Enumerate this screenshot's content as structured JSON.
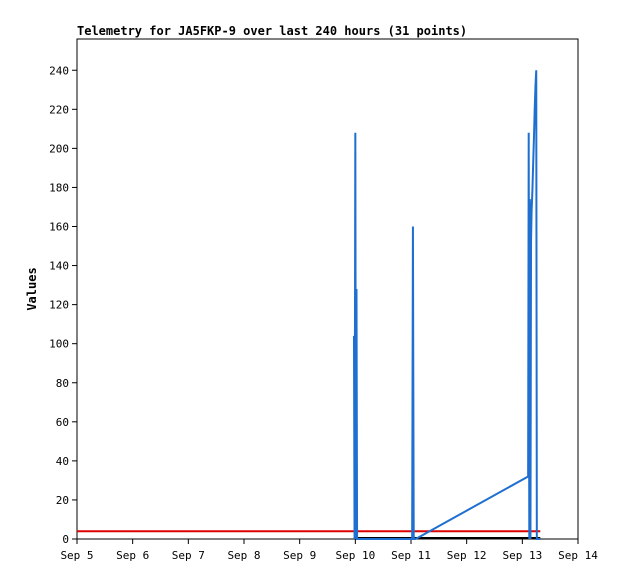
{
  "chart_data": {
    "type": "line",
    "title": "Telemetry for JA5FKP-9 over last 240 hours (31 points)",
    "xlabel": "",
    "ylabel": "Values",
    "xlim": [
      "Sep 5",
      "Sep 14"
    ],
    "ylim": [
      0,
      256
    ],
    "x_ticks": [
      "Sep 5",
      "Sep 6",
      "Sep 7",
      "Sep 8",
      "Sep 9",
      "Sep 10",
      "Sep 11",
      "Sep 12",
      "Sep 13",
      "Sep 14"
    ],
    "y_ticks": [
      0,
      20,
      40,
      60,
      80,
      100,
      120,
      140,
      160,
      180,
      200,
      220,
      240
    ],
    "grid": false,
    "legend": "none",
    "colors": {
      "series": "#1f6fd0",
      "reference": "#dd0000",
      "baseline": "#000000"
    },
    "series": [
      {
        "values_x": [
          "Sep 9 23:25",
          "Sep 9 23:40",
          "Sep 10 00:00",
          "Sep 10 00:15",
          "Sep 10 00:30",
          "Sep 10 00:45",
          "Sep 10 01:00",
          "Sep 11 00:30",
          "Sep 11 00:50",
          "Sep 11 01:10",
          "Sep 11 02:00",
          "Sep 13 02:30",
          "Sep 13 02:45",
          "Sep 13 03:00",
          "Sep 13 03:15",
          "Sep 13 03:30",
          "Sep 13 03:45",
          "Sep 13 04:00",
          "Sep 13 04:20",
          "Sep 13 04:40",
          "Sep 13 05:00",
          "Sep 13 05:20",
          "Sep 13 05:40",
          "Sep 13 06:00",
          "Sep 13 06:15",
          "Sep 13 06:30",
          "Sep 13 06:45",
          "Sep 13 07:00",
          "Sep 13 07:15",
          "Sep 13 07:30",
          "Sep 13 07:45"
        ],
        "values_y": [
          104,
          0,
          208,
          0,
          128,
          0,
          0,
          0,
          160,
          0,
          0,
          32,
          208,
          0,
          174,
          0,
          152,
          168,
          178,
          192,
          205,
          220,
          232,
          240,
          0,
          0,
          0,
          0,
          0,
          0,
          0
        ]
      }
    ],
    "reference_line": {
      "y": 4
    }
  }
}
